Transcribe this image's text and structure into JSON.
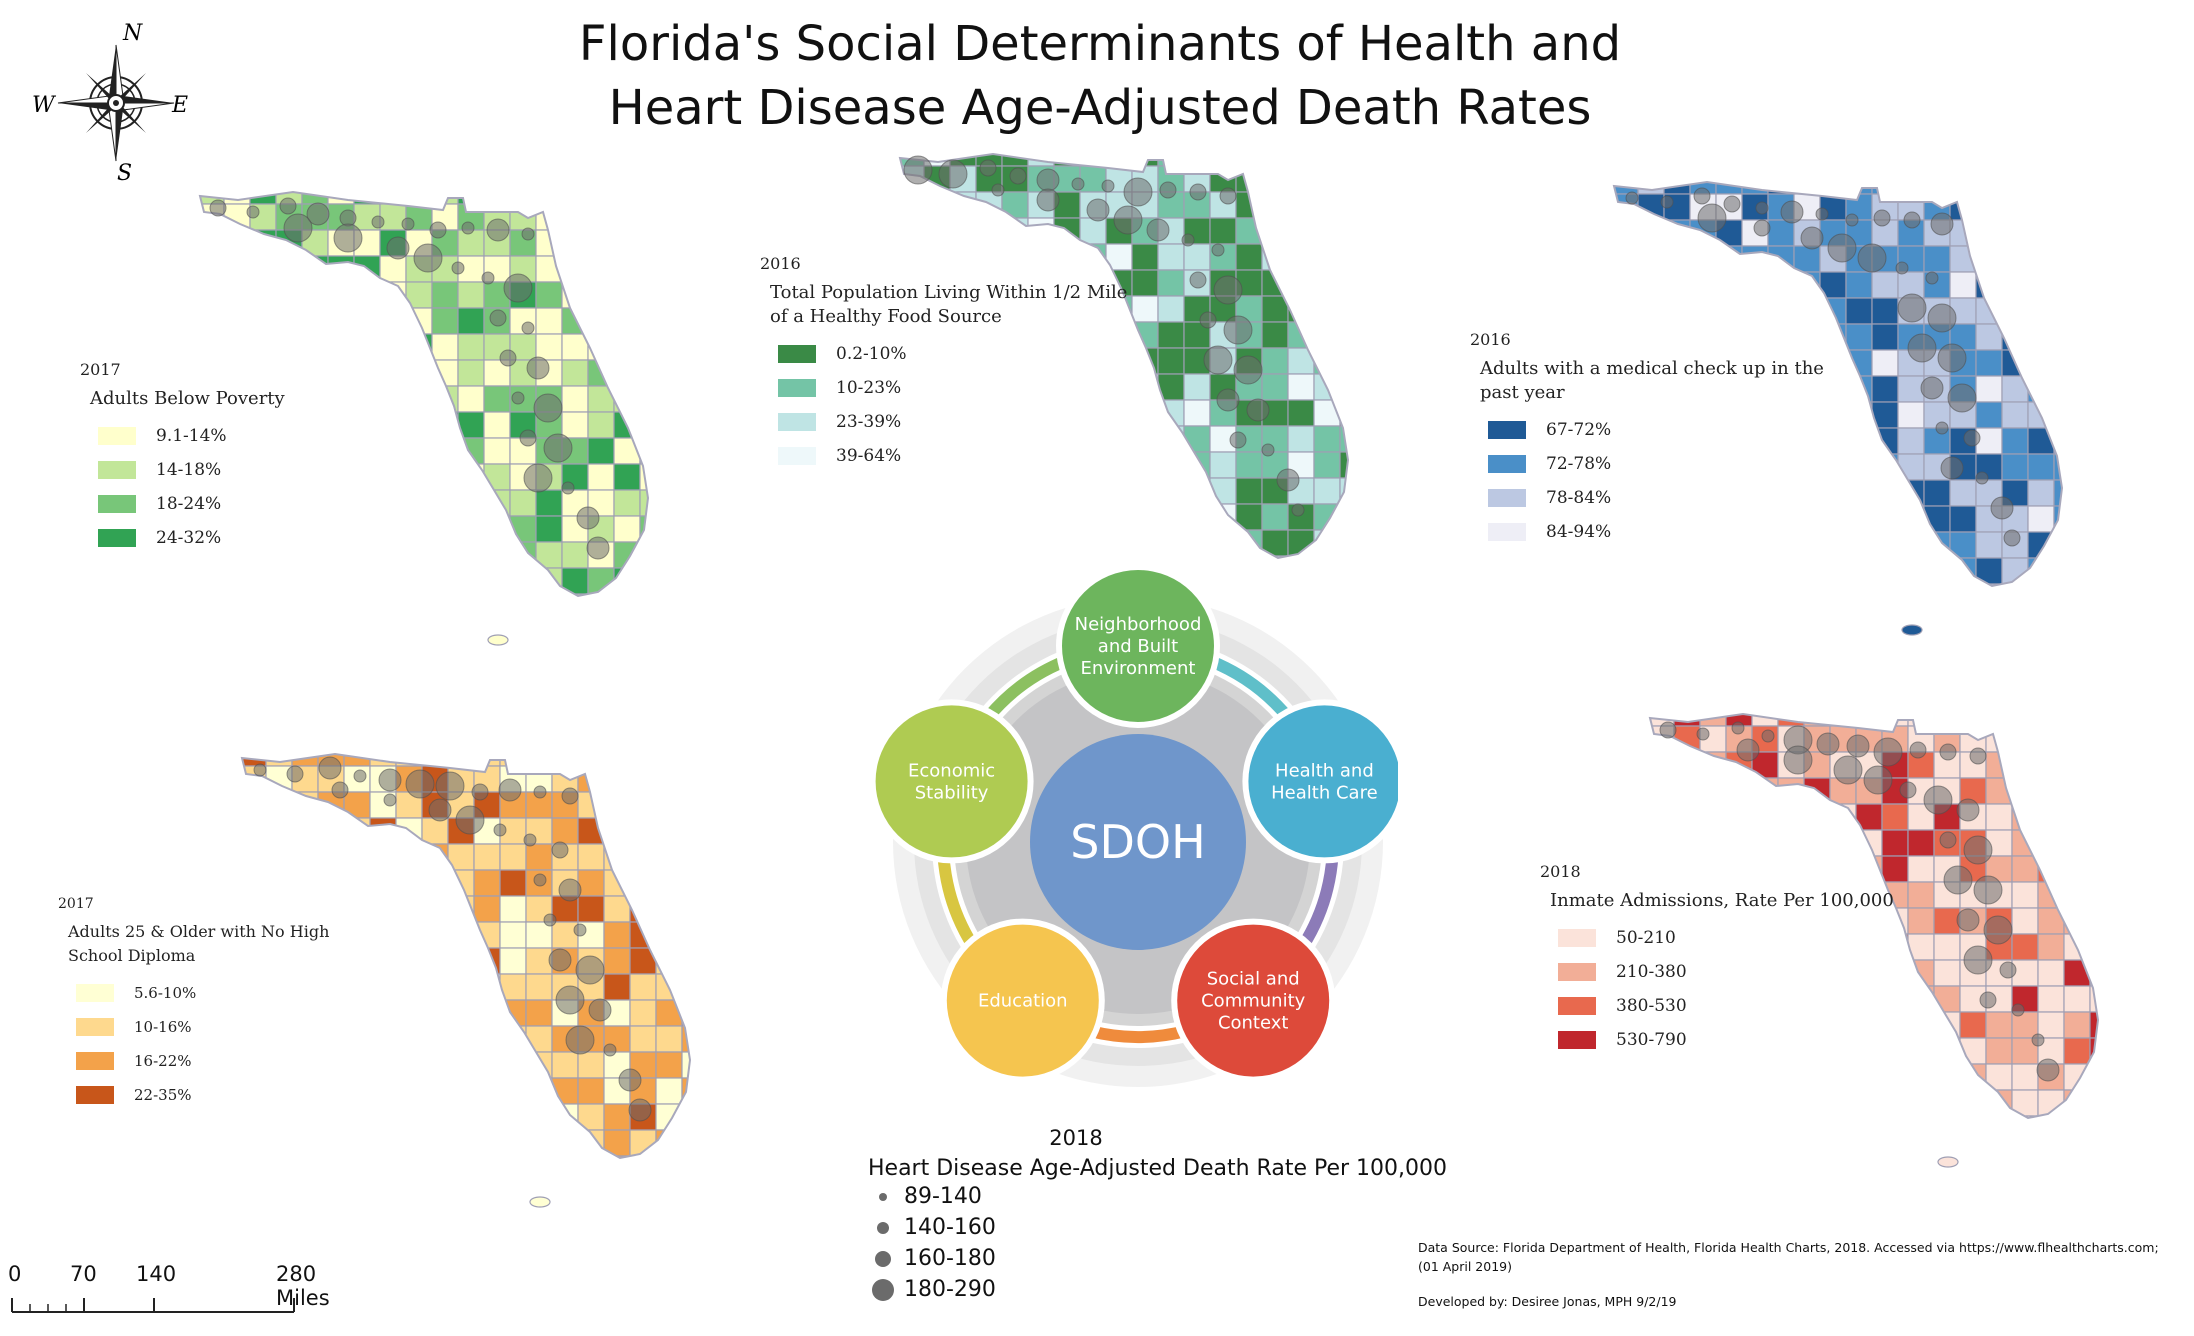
{
  "title": {
    "line1": "Florida's Social Determinants of Health and",
    "line2": "Heart Disease Age-Adjusted Death Rates"
  },
  "compass": {
    "n": "N",
    "s": "S",
    "e": "E",
    "w": "W"
  },
  "maps": {
    "poverty": {
      "year": "2017",
      "title": "Adults Below Poverty",
      "classes": [
        {
          "label": "9.1-14%",
          "color": "#ffffcc"
        },
        {
          "label": "14-18%",
          "color": "#c2e699"
        },
        {
          "label": "18-24%",
          "color": "#78c679"
        },
        {
          "label": "24-32%",
          "color": "#31a354"
        }
      ]
    },
    "food": {
      "year": "2016",
      "title": "Total Population Living Within 1/2 Mile of a Healthy Food Source",
      "classes": [
        {
          "label": "0.2-10%",
          "color": "#3a8a46"
        },
        {
          "label": "10-23%",
          "color": "#74c4a6"
        },
        {
          "label": "23-39%",
          "color": "#bfe4e4"
        },
        {
          "label": "39-64%",
          "color": "#eef8fa"
        }
      ]
    },
    "checkup": {
      "year": "2016",
      "title": "Adults with a medical check up in the past year",
      "classes": [
        {
          "label": "67-72%",
          "color": "#1f5a96"
        },
        {
          "label": "72-78%",
          "color": "#4a8fc8"
        },
        {
          "label": "78-84%",
          "color": "#bcc8e2"
        },
        {
          "label": "84-94%",
          "color": "#eeeef6"
        }
      ]
    },
    "diploma": {
      "year": "2017",
      "title": "Adults 25 & Older with No High School Diploma",
      "classes": [
        {
          "label": "5.6-10%",
          "color": "#ffffd4"
        },
        {
          "label": "10-16%",
          "color": "#fed98e"
        },
        {
          "label": "16-22%",
          "color": "#f3a24a"
        },
        {
          "label": "22-35%",
          "color": "#c8561a"
        }
      ]
    },
    "inmate": {
      "year": "2018",
      "title": "Inmate Admissions, Rate Per 100,000",
      "classes": [
        {
          "label": "50-210",
          "color": "#fbe3da"
        },
        {
          "label": "210-380",
          "color": "#f2ae97"
        },
        {
          "label": "380-530",
          "color": "#e8694e"
        },
        {
          "label": "530-790",
          "color": "#c0272d"
        }
      ]
    }
  },
  "sdoh": {
    "center": "SDOH",
    "domains": [
      {
        "label": "Neighborhood and Built Environment",
        "color": "#6db55d"
      },
      {
        "label": "Health and Health Care",
        "color": "#4aafd0"
      },
      {
        "label": "Social and Community Context",
        "color": "#dd4a3a"
      },
      {
        "label": "Education",
        "color": "#f5c54f"
      },
      {
        "label": "Economic Stability",
        "color": "#afcb52"
      }
    ]
  },
  "heart": {
    "year": "2018",
    "title": "Heart Disease Age-Adjusted Death Rate Per 100,000",
    "classes": [
      "89-140",
      "140-160",
      "160-180",
      "180-290"
    ]
  },
  "scale": {
    "ticks": [
      "0",
      "70",
      "140",
      "280 Miles"
    ]
  },
  "source": "Data Source: Florida Department of Health, Florida Health Charts, 2018. Accessed via https://www.flhealthcharts.com; (01 April 2019)",
  "credit": "Developed by: Desiree Jonas, MPH 9/2/19"
}
